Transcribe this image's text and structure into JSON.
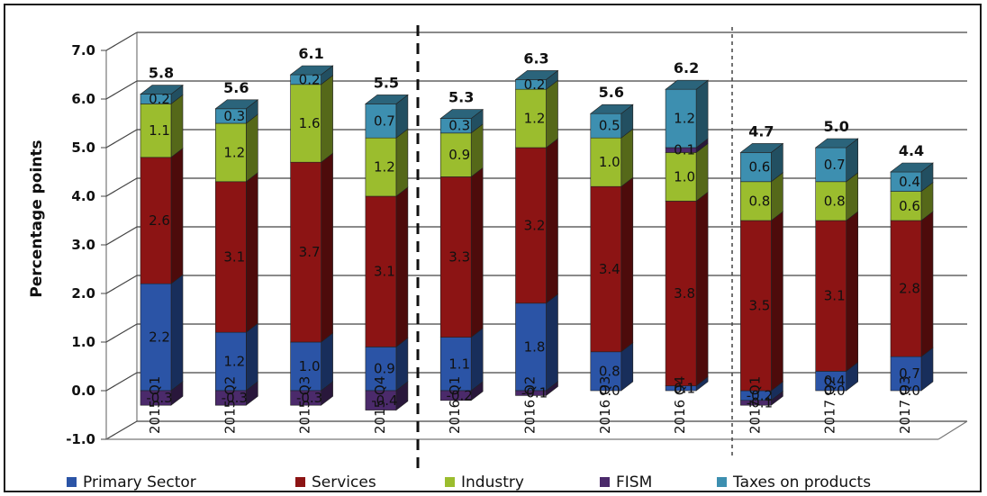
{
  "chart_data": {
    "type": "bar",
    "stacked": true,
    "three_d": true,
    "ylabel": "Percentage points",
    "xlabel": "",
    "ylim": [
      -1.0,
      7.0
    ],
    "yticks": [
      "7.0",
      "6.0",
      "5.0",
      "4.0",
      "3.0",
      "2.0",
      "1.0",
      "0.0",
      "-1.0"
    ],
    "grid": true,
    "legend_position": "bottom",
    "categories": [
      "2015 Q1",
      "2015 Q2",
      "2015 Q3",
      "2015 Q4",
      "2016 Q1",
      "2016 Q2",
      "2016 Q3",
      "2016 Q4",
      "2017 Q1",
      "2017 Q2",
      "2017 Q3"
    ],
    "series": [
      {
        "name": "Primary Sector",
        "color": "#2b54a6",
        "values": [
          2.2,
          1.2,
          1.0,
          0.9,
          1.1,
          1.8,
          0.8,
          0.1,
          -0.2,
          0.4,
          0.7
        ],
        "labels": [
          "2.2",
          "1.2",
          "1.0",
          "0.9",
          "1.1",
          "1.8",
          "0.8",
          "0.1",
          "-0.2",
          "0.4",
          "0.7"
        ]
      },
      {
        "name": "Services",
        "color": "#8c1414",
        "values": [
          2.6,
          3.1,
          3.7,
          3.1,
          3.3,
          3.2,
          3.4,
          3.8,
          3.5,
          3.1,
          2.8
        ],
        "labels": [
          "2.6",
          "3.1",
          "3.7",
          "3.1",
          "3.3",
          "3.2",
          "3.4",
          "3.8",
          "3.5",
          "3.1",
          "2.8"
        ]
      },
      {
        "name": "Industry",
        "color": "#9bbd2e",
        "values": [
          1.1,
          1.2,
          1.6,
          1.2,
          0.9,
          1.2,
          1.0,
          1.0,
          0.8,
          0.8,
          0.6
        ],
        "labels": [
          "1.1",
          "1.2",
          "1.6",
          "1.2",
          "0.9",
          "1.2",
          "1.0",
          "1.0",
          "0.8",
          "0.8",
          "0.6"
        ]
      },
      {
        "name": "FISM",
        "color": "#4b2a6b",
        "values": [
          -0.3,
          -0.3,
          -0.3,
          -0.4,
          -0.2,
          -0.1,
          0.0,
          0.1,
          -0.1,
          0.0,
          0.0
        ],
        "labels": [
          "-0.3",
          "-0.3",
          "-0.3",
          "-0.4",
          "-0.2",
          "-0.1",
          "0.0",
          "0.1",
          "-0.1",
          "0.0",
          "0.0"
        ]
      },
      {
        "name": "Taxes on products",
        "color": "#3d8fb0",
        "values": [
          0.2,
          0.3,
          0.2,
          0.7,
          0.3,
          0.2,
          0.5,
          1.2,
          0.6,
          0.7,
          0.4
        ],
        "labels": [
          "0.2",
          "0.3",
          "0.2",
          "0.7",
          "0.3",
          "0.2",
          "0.5",
          "1.2",
          "0.6",
          "0.7",
          "0.4"
        ]
      }
    ],
    "totals": [
      "5.8",
      "5.6",
      "6.1",
      "5.5",
      "5.3",
      "6.3",
      "5.6",
      "6.2",
      "4.7",
      "5.0",
      "4.4"
    ],
    "annotations": [
      {
        "type": "vertical-dashed-line",
        "between": [
          "2015 Q4",
          "2016 Q1"
        ],
        "style": "bold-dashed"
      },
      {
        "type": "vertical-dashed-line",
        "between": [
          "2016 Q4",
          "2017 Q1"
        ],
        "style": "dotted"
      }
    ]
  }
}
